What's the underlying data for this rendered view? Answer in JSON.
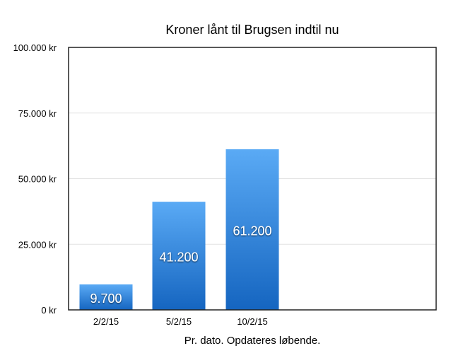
{
  "chart_data": {
    "type": "bar",
    "title": "Kroner lånt til Brugsen indtil nu",
    "xlabel": "Pr. dato. Opdateres løbende.",
    "ylabel": "",
    "categories": [
      "2/2/15",
      "5/2/15",
      "10/2/15"
    ],
    "values": [
      9700,
      41200,
      61200
    ],
    "data_labels": [
      "9.700",
      "41.200",
      "61.200"
    ],
    "ylim": [
      0,
      100000
    ],
    "yticks": [
      0,
      25000,
      50000,
      75000,
      100000
    ],
    "ytick_labels": [
      "0 kr",
      "25.000 kr",
      "50.000 kr",
      "75.000 kr",
      "100.000 kr"
    ],
    "grid": true,
    "colors": {
      "bar_top": "#5aaaf5",
      "bar_bottom": "#1565c0"
    }
  }
}
